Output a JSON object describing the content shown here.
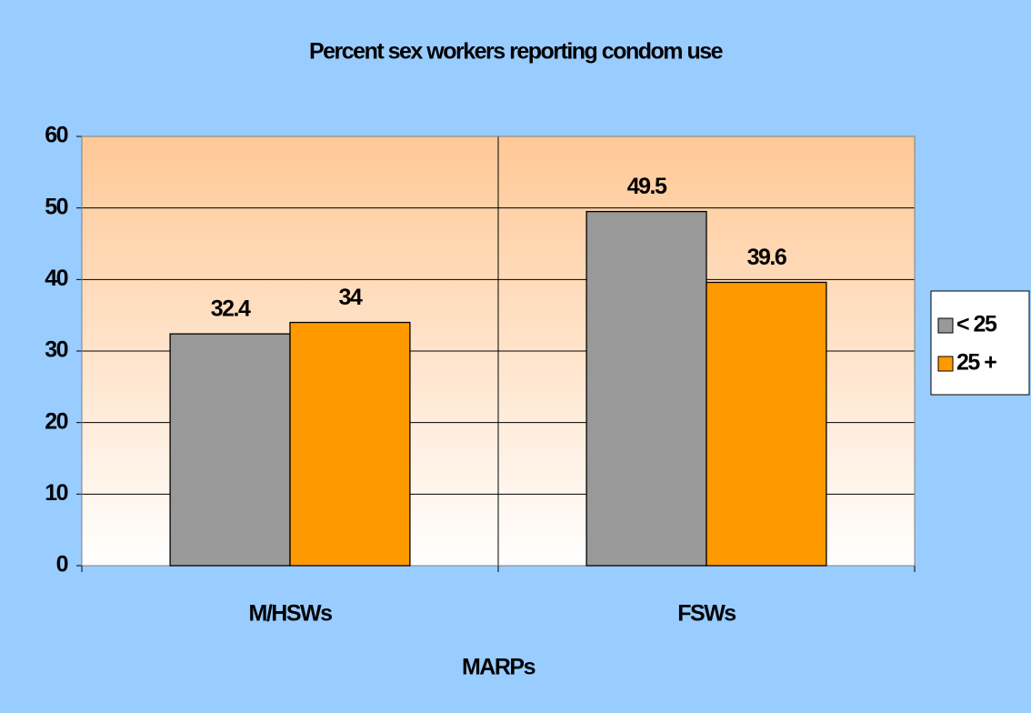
{
  "chart_data": {
    "type": "bar",
    "title": "Percent sex workers reporting condom use",
    "x_label": "MARPs",
    "categories": [
      "M/HSWs",
      "FSWs"
    ],
    "series": [
      {
        "name": "< 25",
        "color": "#999999",
        "values": [
          32.4,
          49.5
        ]
      },
      {
        "name": "25 +",
        "color": "#ff9900",
        "values": [
          34,
          39.6
        ]
      }
    ],
    "ylim": [
      0,
      60
    ],
    "yticks": [
      0,
      10,
      20,
      30,
      40,
      50,
      60
    ],
    "grid": true,
    "legend": "right"
  }
}
